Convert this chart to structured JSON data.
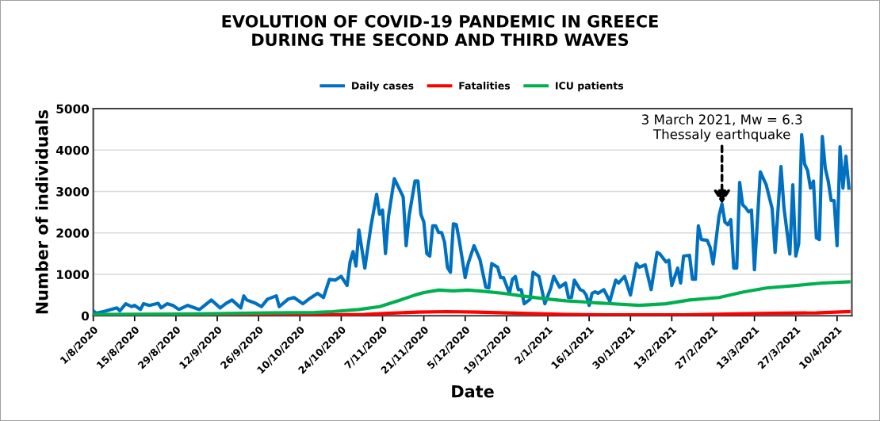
{
  "chart_data": {
    "type": "line",
    "title": "EVOLUTION OF COVID-19 PANDEMIC IN GREECE\nDURING THE SECOND AND THIRD WAVES",
    "xlabel": "Date",
    "ylabel": "Number of individuals",
    "xlim": [
      "2020-08-01",
      "2021-04-15"
    ],
    "ylim": [
      0,
      5000
    ],
    "yticks": [
      0,
      1000,
      2000,
      3000,
      4000,
      5000
    ],
    "xticks": [
      {
        "value": "2020-08-01",
        "label": "1/8/2020"
      },
      {
        "value": "2020-08-15",
        "label": "15/8/2020"
      },
      {
        "value": "2020-08-29",
        "label": "29/8/2020"
      },
      {
        "value": "2020-09-12",
        "label": "12/9/2020"
      },
      {
        "value": "2020-09-26",
        "label": "26/9/2020"
      },
      {
        "value": "2020-10-10",
        "label": "10/10/2020"
      },
      {
        "value": "2020-10-24",
        "label": "24/10/2020"
      },
      {
        "value": "2020-11-07",
        "label": "7/11/2020"
      },
      {
        "value": "2020-11-21",
        "label": "21/11/2020"
      },
      {
        "value": "2020-12-05",
        "label": "5/12/2020"
      },
      {
        "value": "2020-12-19",
        "label": "19/12/2020"
      },
      {
        "value": "2021-01-02",
        "label": "2/1/2021"
      },
      {
        "value": "2021-01-16",
        "label": "16/1/2021"
      },
      {
        "value": "2021-01-30",
        "label": "30/1/2021"
      },
      {
        "value": "2021-02-13",
        "label": "13/2/2021"
      },
      {
        "value": "2021-02-27",
        "label": "27/2/2021"
      },
      {
        "value": "2021-03-13",
        "label": "13/3/2021"
      },
      {
        "value": "2021-03-27",
        "label": "27/3/2021"
      },
      {
        "value": "2021-04-10",
        "label": "10/4/2021"
      }
    ],
    "grid": "y",
    "legend": "top",
    "marker": "none",
    "line_style": "solid",
    "annotations": [
      {
        "text": "3 March 2021, Mw = 6.3\nThessaly earthquake",
        "x": "2021-03-02",
        "y": 2700
      }
    ],
    "series": [
      {
        "name": "Daily cases",
        "color": "#0070c0",
        "x": [
          "2020-08-01",
          "2020-08-02",
          "2020-08-05",
          "2020-08-09",
          "2020-08-10",
          "2020-08-12",
          "2020-08-14",
          "2020-08-15",
          "2020-08-17",
          "2020-08-18",
          "2020-08-20",
          "2020-08-23",
          "2020-08-24",
          "2020-08-26",
          "2020-08-28",
          "2020-08-30",
          "2020-09-02",
          "2020-09-06",
          "2020-09-10",
          "2020-09-13",
          "2020-09-15",
          "2020-09-17",
          "2020-09-20",
          "2020-09-21",
          "2020-09-22",
          "2020-09-25",
          "2020-09-27",
          "2020-09-29",
          "2020-10-02",
          "2020-10-03",
          "2020-10-06",
          "2020-10-08",
          "2020-10-11",
          "2020-10-13",
          "2020-10-16",
          "2020-10-18",
          "2020-10-20",
          "2020-10-22",
          "2020-10-24",
          "2020-10-26",
          "2020-10-27",
          "2020-10-28",
          "2020-10-29",
          "2020-10-30",
          "2020-11-01",
          "2020-11-03",
          "2020-11-05",
          "2020-11-06",
          "2020-11-07",
          "2020-11-08",
          "2020-11-09",
          "2020-11-11",
          "2020-11-14",
          "2020-11-15",
          "2020-11-16",
          "2020-11-18",
          "2020-11-19",
          "2020-11-20",
          "2020-11-21",
          "2020-11-22",
          "2020-11-23",
          "2020-11-24",
          "2020-11-25",
          "2020-11-26",
          "2020-11-27",
          "2020-11-28",
          "2020-11-29",
          "2020-11-30",
          "2020-12-01",
          "2020-12-02",
          "2020-12-03",
          "2020-12-05",
          "2020-12-06",
          "2020-12-08",
          "2020-12-10",
          "2020-12-12",
          "2020-12-13",
          "2020-12-14",
          "2020-12-16",
          "2020-12-17",
          "2020-12-18",
          "2020-12-20",
          "2020-12-21",
          "2020-12-22",
          "2020-12-23",
          "2020-12-24",
          "2020-12-25",
          "2020-12-27",
          "2020-12-28",
          "2020-12-30",
          "2021-01-01",
          "2021-01-03",
          "2021-01-04",
          "2021-01-06",
          "2021-01-08",
          "2021-01-09",
          "2021-01-10",
          "2021-01-11",
          "2021-01-13",
          "2021-01-14",
          "2021-01-15",
          "2021-01-16",
          "2021-01-17",
          "2021-01-18",
          "2021-01-19",
          "2021-01-21",
          "2021-01-23",
          "2021-01-25",
          "2021-01-26",
          "2021-01-28",
          "2021-01-30",
          "2021-02-01",
          "2021-02-02",
          "2021-02-04",
          "2021-02-06",
          "2021-02-08",
          "2021-02-09",
          "2021-02-11",
          "2021-02-12",
          "2021-02-13",
          "2021-02-15",
          "2021-02-16",
          "2021-02-17",
          "2021-02-19",
          "2021-02-20",
          "2021-02-21",
          "2021-02-22",
          "2021-02-23",
          "2021-02-25",
          "2021-02-26",
          "2021-02-27",
          "2021-03-01",
          "2021-03-02",
          "2021-03-03",
          "2021-03-04",
          "2021-03-05",
          "2021-03-06",
          "2021-03-07",
          "2021-03-08",
          "2021-03-09",
          "2021-03-10",
          "2021-03-11",
          "2021-03-12",
          "2021-03-13",
          "2021-03-15",
          "2021-03-17",
          "2021-03-18",
          "2021-03-19",
          "2021-03-20",
          "2021-03-22",
          "2021-03-23",
          "2021-03-25",
          "2021-03-26",
          "2021-03-27",
          "2021-03-28",
          "2021-03-29",
          "2021-03-30",
          "2021-03-31",
          "2021-04-01",
          "2021-04-02",
          "2021-04-03",
          "2021-04-04",
          "2021-04-05",
          "2021-04-06",
          "2021-04-07",
          "2021-04-08",
          "2021-04-09",
          "2021-04-10",
          "2021-04-11",
          "2021-04-12",
          "2021-04-13",
          "2021-04-14"
        ],
        "values": [
          120,
          60,
          110,
          190,
          120,
          290,
          220,
          250,
          150,
          290,
          250,
          300,
          190,
          290,
          250,
          150,
          250,
          150,
          380,
          190,
          300,
          380,
          190,
          480,
          380,
          300,
          220,
          400,
          480,
          220,
          400,
          440,
          290,
          400,
          540,
          440,
          880,
          860,
          950,
          730,
          1300,
          1550,
          1200,
          2070,
          1150,
          2130,
          2930,
          2450,
          2550,
          1500,
          2390,
          3310,
          2870,
          1690,
          2410,
          3250,
          3250,
          2450,
          2260,
          1500,
          1440,
          2170,
          2170,
          2010,
          2010,
          1780,
          1170,
          1050,
          2220,
          2200,
          1820,
          920,
          1260,
          1690,
          1360,
          690,
          670,
          1260,
          1170,
          920,
          920,
          540,
          880,
          950,
          630,
          630,
          290,
          400,
          1050,
          950,
          290,
          670,
          950,
          690,
          790,
          440,
          440,
          860,
          630,
          600,
          500,
          250,
          540,
          580,
          540,
          630,
          350,
          860,
          790,
          950,
          500,
          1260,
          1170,
          1230,
          630,
          1530,
          1490,
          1300,
          1340,
          730,
          1150,
          790,
          1440,
          1460,
          880,
          880,
          2170,
          1840,
          1820,
          1650,
          1250,
          2410,
          2700,
          2260,
          2200,
          2320,
          1150,
          1150,
          3220,
          2680,
          2610,
          2510,
          2550,
          1110,
          3470,
          3160,
          2870,
          2590,
          1530,
          3600,
          2610,
          1490,
          3160,
          1440,
          1740,
          4370,
          3660,
          3510,
          3080,
          3250,
          1880,
          1840,
          4330,
          3560,
          3250,
          2780,
          2780,
          1690,
          4080,
          3080,
          3850,
          3080
        ]
      },
      {
        "name": "Fatalities",
        "color": "#ff0000",
        "x": [
          "2020-08-01",
          "2020-08-31",
          "2020-09-15",
          "2020-09-30",
          "2020-10-20",
          "2020-11-01",
          "2020-11-09",
          "2020-11-19",
          "2020-11-29",
          "2020-12-09",
          "2020-12-19",
          "2020-12-29",
          "2021-01-08",
          "2021-01-28",
          "2021-02-17",
          "2021-03-04",
          "2021-03-19",
          "2021-04-03",
          "2021-04-14"
        ],
        "values": [
          0,
          0,
          10,
          10,
          20,
          30,
          60,
          90,
          100,
          90,
          70,
          50,
          30,
          20,
          20,
          40,
          60,
          70,
          100
        ]
      },
      {
        "name": "ICU patients",
        "color": "#00b050",
        "x": [
          "2020-08-01",
          "2020-08-31",
          "2020-09-30",
          "2020-10-15",
          "2020-10-21",
          "2020-10-30",
          "2020-11-06",
          "2020-11-13",
          "2020-11-18",
          "2020-11-21",
          "2020-11-26",
          "2020-12-01",
          "2020-12-06",
          "2020-12-11",
          "2020-12-18",
          "2020-12-24",
          "2021-01-01",
          "2021-01-08",
          "2021-01-15",
          "2021-01-19",
          "2021-02-02",
          "2021-02-11",
          "2021-02-19",
          "2021-03-01",
          "2021-03-09",
          "2021-03-17",
          "2021-03-27",
          "2021-04-05",
          "2021-04-14"
        ],
        "values": [
          30,
          40,
          70,
          80,
          100,
          150,
          220,
          380,
          500,
          560,
          620,
          600,
          620,
          590,
          540,
          480,
          410,
          360,
          330,
          310,
          250,
          290,
          380,
          440,
          570,
          670,
          730,
          790,
          820
        ]
      }
    ]
  }
}
